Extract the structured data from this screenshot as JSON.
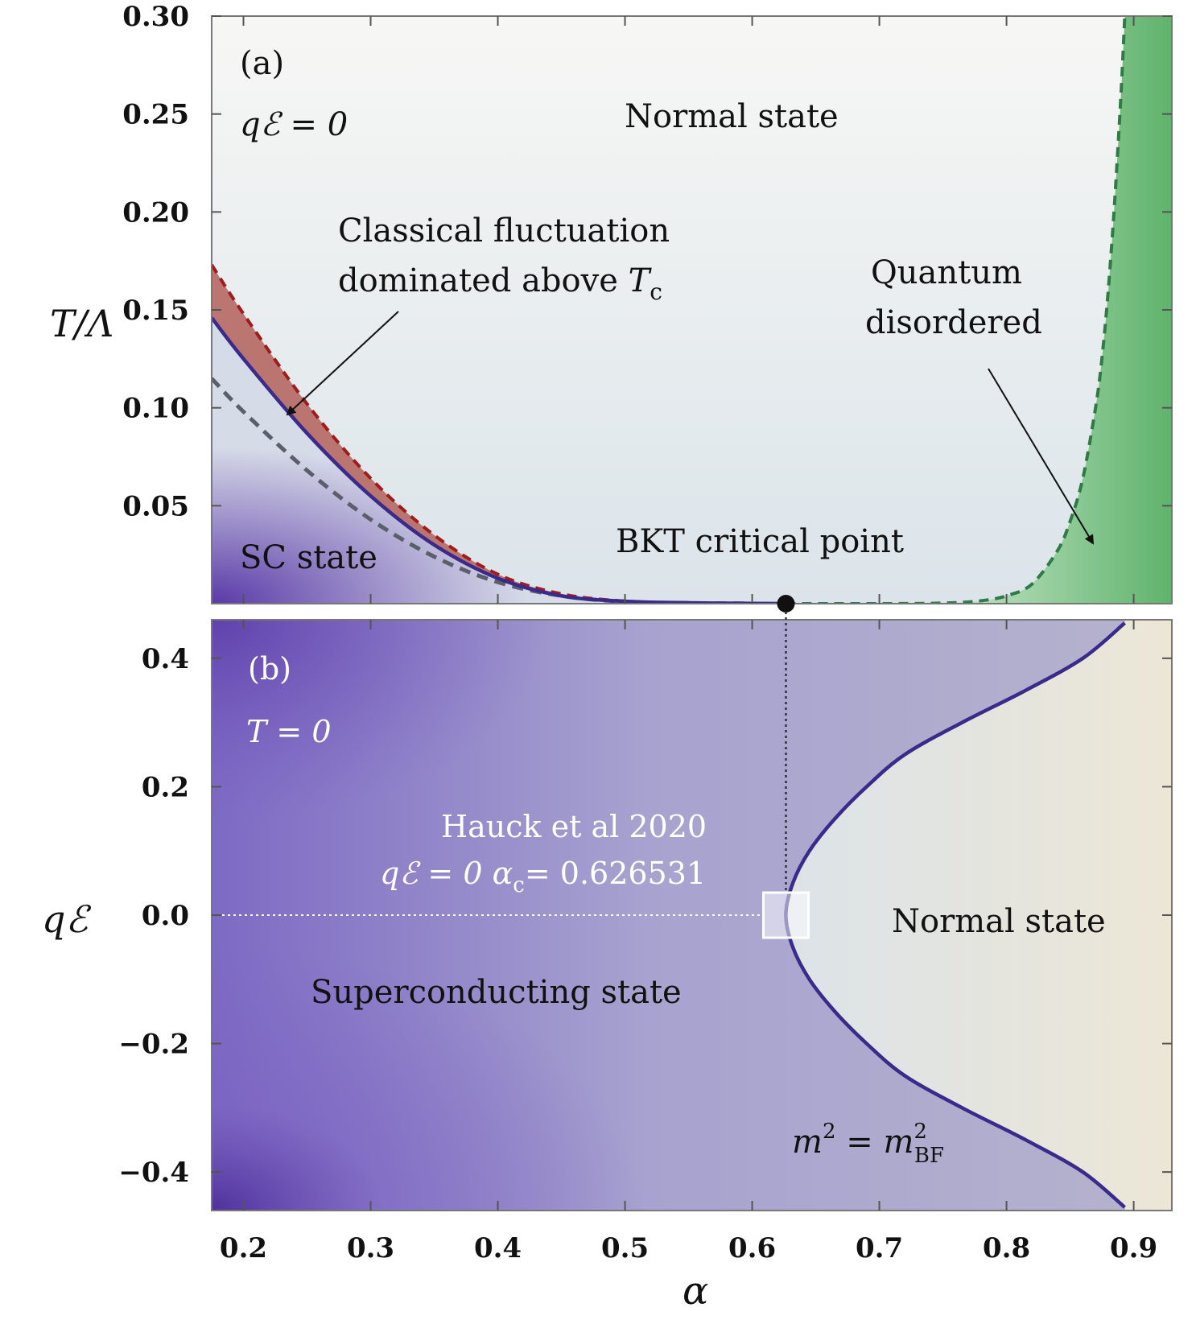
{
  "chart_data": [
    {
      "id": "a",
      "type": "line",
      "panel_label": "(a)",
      "condition": "qℰ = 0",
      "ylabel": "T/Λ",
      "xlim": [
        0.175,
        0.93
      ],
      "ylim": [
        0.0,
        0.3
      ],
      "y_ticks": [
        "0.05",
        "0.10",
        "0.15",
        "0.20",
        "0.25",
        "0.30"
      ],
      "regions": {
        "normal": "Normal state",
        "sc": "SC state",
        "classical": [
          "Classical fluctuation",
          "dominated above"
        ],
        "classical_sym": "T",
        "classical_sub": "c",
        "quantum": [
          "Quantum",
          "disordered"
        ],
        "bkt": "BKT critical point"
      },
      "colors": {
        "tc_line": "#3a2a8c",
        "upper_dashed": "#a01c1c",
        "lower_dashed": "#5a5f6a",
        "quantum_dashed": "#2f7a45",
        "classical_fill": "#b3605a",
        "quantum_fill": "#5fb36c",
        "sc_fill": "#6a4fb8"
      },
      "series": [
        {
          "kind": "Tc",
          "x": [
            0.175,
            0.2,
            0.25,
            0.3,
            0.35,
            0.4,
            0.45,
            0.5,
            0.55,
            0.6,
            0.626531
          ],
          "y": [
            0.146,
            0.125,
            0.087,
            0.055,
            0.03,
            0.013,
            0.004,
            0.0012,
            0.0004,
            0.0001,
            0.0
          ]
        },
        {
          "kind": "upper",
          "x": [
            0.175,
            0.2,
            0.25,
            0.3,
            0.35,
            0.4,
            0.45,
            0.5,
            0.55,
            0.6,
            0.626531
          ],
          "y": [
            0.173,
            0.148,
            0.102,
            0.064,
            0.035,
            0.015,
            0.005,
            0.0013,
            0.0004,
            0.0001,
            0.0
          ]
        },
        {
          "kind": "lower",
          "x": [
            0.175,
            0.2,
            0.25,
            0.3,
            0.35,
            0.4,
            0.45,
            0.5,
            0.55,
            0.6
          ],
          "y": [
            0.115,
            0.098,
            0.068,
            0.043,
            0.024,
            0.011,
            0.004,
            0.001,
            0.0003,
            0.0001
          ]
        },
        {
          "kind": "quantum",
          "x": [
            0.626531,
            0.7,
            0.75,
            0.78,
            0.8,
            0.82,
            0.84,
            0.85,
            0.86,
            0.87,
            0.875,
            0.88,
            0.885,
            0.89,
            0.893
          ],
          "y": [
            0.0,
            0.0,
            0.0003,
            0.0015,
            0.004,
            0.01,
            0.027,
            0.042,
            0.064,
            0.1,
            0.125,
            0.16,
            0.205,
            0.26,
            0.3
          ]
        }
      ],
      "critical_point": {
        "x": 0.626531,
        "y": 0.0
      }
    },
    {
      "id": "b",
      "type": "line",
      "panel_label": "(b)",
      "condition": "T = 0",
      "xlabel": "α",
      "ylabel": "qℰ",
      "xlim": [
        0.175,
        0.93
      ],
      "ylim": [
        -0.46,
        0.46
      ],
      "x_ticks": [
        "0.2",
        "0.3",
        "0.4",
        "0.5",
        "0.6",
        "0.7",
        "0.8",
        "0.9"
      ],
      "y_ticks": [
        "−0.4",
        "−0.2",
        "0.0",
        "0.2",
        "0.4"
      ],
      "regions": {
        "sc": "Superconducting state",
        "normal": "Normal state",
        "bf_label": "m² = m²BF",
        "bf_lhs": "m",
        "bf_sub": "BF"
      },
      "annotation": {
        "line1": "Hauck et al 2020",
        "line2": "qℰ = 0  αc = 0.626531",
        "text": "qℰ = 0",
        "symbol": "α",
        "sub": "c",
        "value": "= 0.626531"
      },
      "alpha_c": 0.626531,
      "boundary": {
        "y": [
          -0.455,
          -0.4,
          -0.35,
          -0.3,
          -0.25,
          -0.2,
          -0.15,
          -0.1,
          -0.05,
          0.0,
          0.05,
          0.1,
          0.15,
          0.2,
          0.25,
          0.3,
          0.35,
          0.4,
          0.455
        ],
        "x": [
          0.893,
          0.86,
          0.815,
          0.765,
          0.72,
          0.69,
          0.665,
          0.645,
          0.632,
          0.6265,
          0.632,
          0.645,
          0.665,
          0.69,
          0.72,
          0.765,
          0.815,
          0.86,
          0.893
        ]
      },
      "colors": {
        "boundary": "#3a2a8c",
        "sc_fill": "#8c80c8",
        "normal_fill": "#dfe3e6"
      }
    }
  ]
}
